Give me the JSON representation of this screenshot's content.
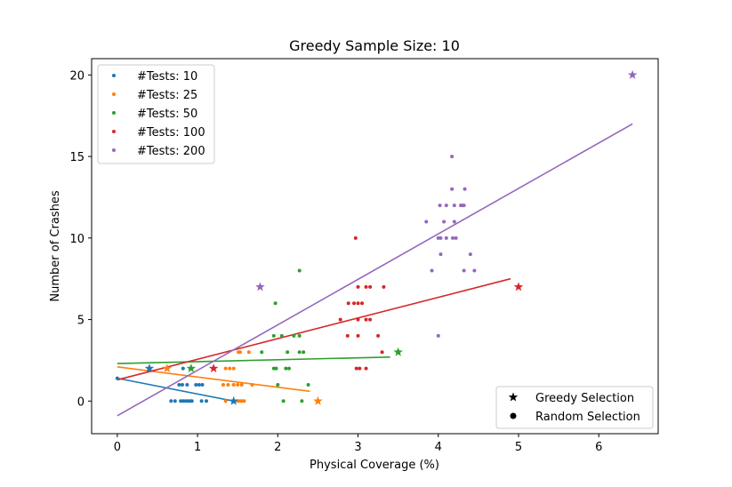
{
  "chart_data": {
    "type": "scatter",
    "title": "Greedy Sample Size: 10",
    "xlabel": "Physical Coverage (%)",
    "ylabel": "Number of Crashes",
    "xlim": [
      -0.32,
      6.74
    ],
    "ylim": [
      -2,
      21
    ],
    "xticks": [
      "0",
      "1",
      "2",
      "3",
      "4",
      "5",
      "6"
    ],
    "yticks": [
      "0",
      "5",
      "10",
      "15",
      "20"
    ],
    "grid": false,
    "legend_position": "upper left",
    "style_legend_position": "lower right",
    "style_legend": [
      {
        "label": "Greedy Selection",
        "marker": "star"
      },
      {
        "label": "Random Selection",
        "marker": "dot"
      }
    ],
    "series": [
      {
        "name": "#Tests: 10",
        "color": "#1f77b4",
        "random": [
          [
            0.67,
            0
          ],
          [
            0.72,
            0
          ],
          [
            0.79,
            0
          ],
          [
            0.82,
            0
          ],
          [
            0.85,
            0
          ],
          [
            0.88,
            0
          ],
          [
            0.91,
            0
          ],
          [
            0.93,
            0
          ],
          [
            1.05,
            0
          ],
          [
            1.11,
            0
          ],
          [
            0.77,
            1
          ],
          [
            0.81,
            1
          ],
          [
            0.87,
            1
          ],
          [
            0.98,
            1
          ],
          [
            1.02,
            1
          ],
          [
            1.06,
            1
          ],
          [
            0.82,
            2
          ],
          [
            0.91,
            2
          ],
          [
            0.0,
            1.4
          ]
        ],
        "greedy": [
          [
            0.4,
            2
          ],
          [
            1.45,
            0
          ]
        ],
        "fit": [
          [
            0.0,
            1.4
          ],
          [
            1.45,
            0.0
          ]
        ]
      },
      {
        "name": "#Tests: 25",
        "color": "#ff7f0e",
        "random": [
          [
            1.35,
            0
          ],
          [
            1.5,
            0
          ],
          [
            1.53,
            0
          ],
          [
            1.55,
            0
          ],
          [
            1.58,
            0
          ],
          [
            1.32,
            1
          ],
          [
            1.38,
            1
          ],
          [
            1.45,
            1
          ],
          [
            1.5,
            1
          ],
          [
            1.55,
            1
          ],
          [
            1.68,
            1
          ],
          [
            1.35,
            2
          ],
          [
            1.4,
            2
          ],
          [
            1.45,
            2
          ],
          [
            1.51,
            3
          ],
          [
            1.53,
            3
          ],
          [
            1.64,
            3
          ]
        ],
        "greedy": [
          [
            0.62,
            2
          ],
          [
            2.5,
            0
          ]
        ],
        "fit": [
          [
            0.0,
            2.1
          ],
          [
            2.4,
            0.6
          ]
        ]
      },
      {
        "name": "#Tests: 50",
        "color": "#2ca02c",
        "random": [
          [
            2.07,
            0
          ],
          [
            2.3,
            0
          ],
          [
            2.0,
            1
          ],
          [
            2.38,
            1
          ],
          [
            1.95,
            2
          ],
          [
            1.98,
            2
          ],
          [
            2.1,
            2
          ],
          [
            2.14,
            2
          ],
          [
            2.12,
            3
          ],
          [
            2.27,
            3
          ],
          [
            2.32,
            3
          ],
          [
            1.8,
            3
          ],
          [
            1.95,
            4
          ],
          [
            2.05,
            4
          ],
          [
            2.2,
            4
          ],
          [
            2.27,
            4
          ],
          [
            1.97,
            6
          ],
          [
            2.27,
            8
          ]
        ],
        "greedy": [
          [
            0.92,
            2
          ],
          [
            3.5,
            3
          ]
        ],
        "fit": [
          [
            0.0,
            2.3
          ],
          [
            3.4,
            2.7
          ]
        ]
      },
      {
        "name": "#Tests: 100",
        "color": "#d62728",
        "random": [
          [
            2.98,
            2
          ],
          [
            3.02,
            2
          ],
          [
            3.1,
            2
          ],
          [
            3.3,
            3
          ],
          [
            2.87,
            4
          ],
          [
            3.0,
            4
          ],
          [
            3.25,
            4
          ],
          [
            2.78,
            5
          ],
          [
            3.0,
            5
          ],
          [
            3.1,
            5
          ],
          [
            3.15,
            5
          ],
          [
            2.88,
            6
          ],
          [
            2.95,
            6
          ],
          [
            3.0,
            6
          ],
          [
            3.05,
            6
          ],
          [
            3.0,
            7
          ],
          [
            3.1,
            7
          ],
          [
            3.15,
            7
          ],
          [
            3.32,
            7
          ],
          [
            2.97,
            10
          ]
        ],
        "greedy": [
          [
            1.2,
            2
          ],
          [
            5.0,
            7
          ]
        ],
        "fit": [
          [
            0.0,
            1.3
          ],
          [
            4.9,
            7.5
          ]
        ]
      },
      {
        "name": "#Tests: 200",
        "color": "#9467bd",
        "random": [
          [
            4.0,
            4
          ],
          [
            3.92,
            8
          ],
          [
            4.32,
            8
          ],
          [
            4.45,
            8
          ],
          [
            4.03,
            9
          ],
          [
            4.4,
            9
          ],
          [
            4.0,
            10
          ],
          [
            4.03,
            10
          ],
          [
            4.1,
            10
          ],
          [
            4.18,
            10
          ],
          [
            4.22,
            10
          ],
          [
            3.85,
            11
          ],
          [
            4.07,
            11
          ],
          [
            4.2,
            11
          ],
          [
            4.02,
            12
          ],
          [
            4.1,
            12
          ],
          [
            4.2,
            12
          ],
          [
            4.28,
            12
          ],
          [
            4.3,
            12
          ],
          [
            4.32,
            12
          ],
          [
            4.17,
            13
          ],
          [
            4.33,
            13
          ],
          [
            4.17,
            15
          ]
        ],
        "greedy": [
          [
            1.78,
            7
          ],
          [
            6.42,
            20
          ]
        ],
        "fit": [
          [
            0.0,
            -0.9
          ],
          [
            6.42,
            17.0
          ]
        ]
      }
    ]
  }
}
